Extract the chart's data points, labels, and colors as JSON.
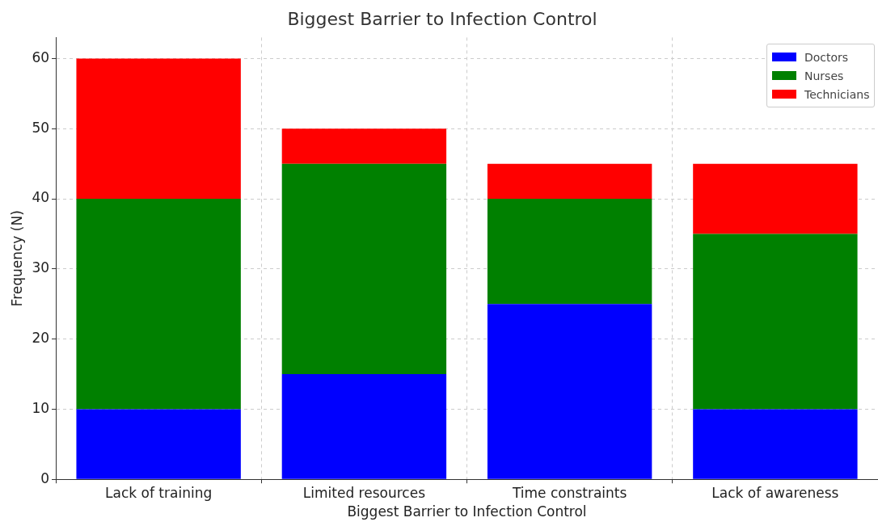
{
  "chart_data": {
    "type": "bar",
    "title": "Biggest Barrier to Infection Control",
    "xlabel": "Biggest Barrier to Infection Control",
    "ylabel": "Frequency (N)",
    "categories": [
      "Lack of training",
      "Limited resources",
      "Time constraints",
      "Lack of awareness"
    ],
    "series": [
      {
        "name": "Doctors",
        "color": "#0000ff",
        "values": [
          10,
          15,
          25,
          10
        ]
      },
      {
        "name": "Nurses",
        "color": "#008000",
        "values": [
          30,
          30,
          15,
          25
        ]
      },
      {
        "name": "Technicians",
        "color": "#ff0000",
        "values": [
          20,
          5,
          5,
          10
        ]
      }
    ],
    "stacked": true,
    "ylim": [
      0,
      63
    ],
    "yticks": [
      0,
      10,
      20,
      30,
      40,
      50,
      60
    ],
    "grid": true,
    "legend": "top right"
  }
}
